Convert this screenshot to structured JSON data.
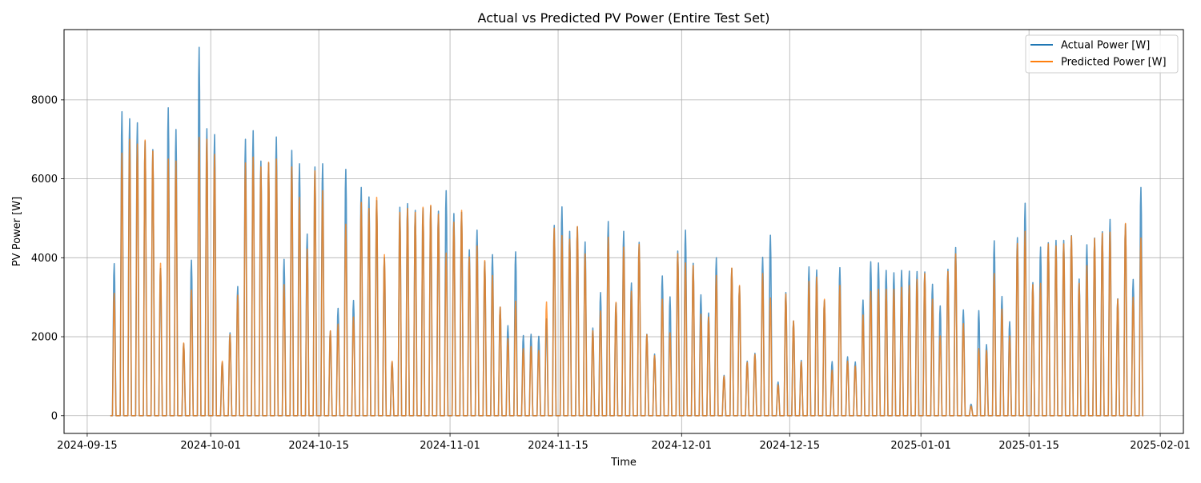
{
  "chart_data": {
    "type": "line",
    "title": "Actual vs Predicted PV Power (Entire Test Set)",
    "xlabel": "Time",
    "ylabel": "PV Power [W]",
    "xlim": [
      "2024-09-12",
      "2025-02-04"
    ],
    "ylim": [
      -450,
      9780
    ],
    "x_ticks": [
      "2024-09-15",
      "2024-10-01",
      "2024-10-15",
      "2024-11-01",
      "2024-11-15",
      "2024-12-01",
      "2024-12-15",
      "2025-01-01",
      "2025-01-15",
      "2025-02-01"
    ],
    "y_ticks": [
      0,
      2000,
      4000,
      6000,
      8000
    ],
    "grid": true,
    "legend_position": "top-right",
    "start_date": "2024-09-18",
    "resolution": "daily peaks (values drop to 0 overnight)",
    "series": [
      {
        "name": "Actual Power [W]",
        "color": "#1f77b4",
        "daily_peak": [
          3850,
          7700,
          7520,
          7420,
          6950,
          6740,
          3730,
          7800,
          7250,
          1820,
          3940,
          9330,
          7270,
          7120,
          1340,
          2100,
          3270,
          7000,
          7220,
          6450,
          6400,
          7060,
          3960,
          6720,
          6380,
          4600,
          6300,
          6380,
          2140,
          2720,
          6240,
          2920,
          5780,
          5540,
          5450,
          4000,
          1350,
          5280,
          5370,
          5200,
          5250,
          5300,
          5180,
          5700,
          5120,
          5150,
          4200,
          4700,
          3900,
          4080,
          2750,
          2280,
          4150,
          2030,
          2060,
          2010,
          2450,
          4820,
          5290,
          4670,
          4780,
          4400,
          2220,
          3120,
          4920,
          2850,
          4670,
          3360,
          4390,
          2060,
          1560,
          3540,
          3010,
          4170,
          4700,
          3860,
          3060,
          2600,
          4000,
          1020,
          3730,
          3270,
          1380,
          1580,
          4010,
          4570,
          850,
          3120,
          2400,
          1400,
          3770,
          3690,
          2920,
          1370,
          3750,
          1490,
          1360,
          2930,
          3900,
          3870,
          3680,
          3620,
          3680,
          3660,
          3650,
          3640,
          3330,
          2780,
          3710,
          4260,
          2680,
          290,
          2660,
          1800,
          4430,
          3020,
          2380,
          4510,
          5380,
          3370,
          4270,
          4380,
          4440,
          4440,
          4560,
          3460,
          4330,
          4500,
          4660,
          4970,
          2960,
          4850,
          3450,
          5780
        ]
      },
      {
        "name": "Predicted Power [W]",
        "color": "#ff7f0e",
        "daily_peak": [
          3100,
          6650,
          7000,
          6880,
          6980,
          6700,
          3860,
          6500,
          6450,
          1840,
          3180,
          7050,
          7000,
          6620,
          1380,
          2050,
          3050,
          6400,
          6550,
          6300,
          6420,
          6500,
          3320,
          6300,
          5530,
          4220,
          6200,
          5700,
          2150,
          2320,
          4850,
          2500,
          5400,
          5250,
          5530,
          4080,
          1380,
          5150,
          5250,
          5150,
          5280,
          5330,
          5100,
          4120,
          4900,
          5200,
          4020,
          4300,
          3930,
          3550,
          2750,
          1950,
          2900,
          1700,
          1750,
          1650,
          2880,
          4750,
          4560,
          4470,
          4790,
          4100,
          2150,
          2650,
          4520,
          2870,
          4270,
          3150,
          4340,
          2050,
          1520,
          2950,
          2100,
          4100,
          3870,
          3800,
          2570,
          2500,
          3550,
          1000,
          3740,
          3300,
          1350,
          1550,
          3600,
          2980,
          780,
          3080,
          2400,
          1360,
          3400,
          3510,
          2950,
          1150,
          3300,
          1380,
          1250,
          2550,
          3150,
          3200,
          3200,
          3200,
          3250,
          3300,
          3450,
          3600,
          2950,
          2020,
          3650,
          4100,
          2330,
          240,
          1700,
          1650,
          3600,
          2700,
          2020,
          4360,
          4670,
          3320,
          3350,
          4350,
          4300,
          4350,
          4550,
          3350,
          3800,
          4490,
          4620,
          4650,
          2950,
          4870,
          3000,
          4500
        ]
      }
    ]
  }
}
